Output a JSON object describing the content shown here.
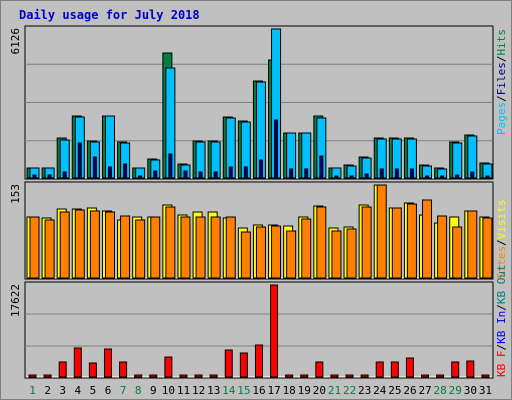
{
  "chart_data": {
    "title": "Daily usage for July 2018",
    "type": "bar",
    "days": [
      "1",
      "2",
      "3",
      "4",
      "5",
      "6",
      "7",
      "8",
      "9",
      "10",
      "11",
      "12",
      "13",
      "14",
      "15",
      "16",
      "17",
      "18",
      "19",
      "20",
      "21",
      "22",
      "23",
      "24",
      "25",
      "26",
      "27",
      "28",
      "29",
      "30",
      "31"
    ],
    "weekend_days": [
      "1",
      "7",
      "8",
      "14",
      "15",
      "21",
      "22",
      "28",
      "29"
    ],
    "colors": {
      "hits": "#008040",
      "files": "#00c0ff",
      "pages": "#000080",
      "visits": "#ffff00",
      "sites": "#ff8000",
      "kb_in": "#008080",
      "kb_out": "#0000ff",
      "kb_f": "#ff0000",
      "weekday_label": "#000000",
      "weekend_label": "#008040"
    },
    "panels": [
      {
        "name": "hits-files-pages",
        "ymax_label": "6126",
        "ymax": 6126,
        "side_legend": [
          "Pages",
          "Files",
          "Hits"
        ],
        "series": [
          {
            "name": "Hits",
            "values": [
              420,
              420,
              1660,
              2540,
              1520,
              2560,
              1480,
              420,
              780,
              5150,
              560,
              1520,
              1520,
              2500,
              2330,
              4000,
              4860,
              1860,
              1860,
              2530,
              420,
              530,
              850,
              1640,
              1640,
              1640,
              520,
              400,
              1460,
              1760,
              600
            ]
          },
          {
            "name": "Files",
            "values": [
              410,
              410,
              1560,
              2520,
              1500,
              2540,
              1440,
              410,
              760,
              4510,
              520,
              1500,
              1500,
              2480,
              2310,
              3960,
              6126,
              1840,
              1840,
              2480,
              410,
              510,
              830,
              1620,
              1620,
              1620,
              510,
              390,
              1420,
              1720,
              580
            ]
          },
          {
            "name": "Pages",
            "values": [
              120,
              120,
              250,
              1420,
              850,
              470,
              580,
              40,
              300,
              1000,
              280,
              250,
              250,
              460,
              450,
              760,
              2380,
              390,
              390,
              890,
              60,
              80,
              150,
              380,
              380,
              380,
              100,
              70,
              140,
              230,
              90
            ]
          }
        ]
      },
      {
        "name": "visits-sites",
        "ymax_label": "153",
        "ymax": 153,
        "side_legend": [
          "Sites",
          "Visits"
        ],
        "series": [
          {
            "name": "Visits",
            "values": [
              100,
              98,
              114,
              113,
              115,
              111,
              95,
              100,
              101,
              120,
              103,
              108,
              108,
              98,
              82,
              88,
              87,
              85,
              101,
              119,
              82,
              84,
              120,
              153,
              115,
              124,
              103,
              90,
              101,
              111,
              100
            ]
          },
          {
            "name": "Sites",
            "values": [
              100,
              96,
              108,
              112,
              110,
              108,
              102,
              96,
              101,
              116,
              100,
              100,
              100,
              100,
              76,
              84,
              85,
              78,
              97,
              116,
              78,
              80,
              116,
              153,
              115,
              121,
              128,
              102,
              84,
              111,
              98
            ]
          }
        ]
      },
      {
        "name": "kbytes",
        "ymax_label": "17622",
        "ymax": 17622,
        "side_legend": [
          "KB F",
          "KB In",
          "KB Out"
        ],
        "series": [
          {
            "name": "KB F",
            "values": [
              160,
              180,
              2950,
              5620,
              2620,
              5450,
              2930,
              200,
              200,
              3870,
              200,
              220,
              200,
              5120,
              4590,
              6210,
              17622,
              200,
              220,
              2930,
              200,
              220,
              220,
              2900,
              2930,
              3690,
              160,
              200,
              2930,
              3100,
              200
            ]
          }
        ]
      }
    ]
  }
}
